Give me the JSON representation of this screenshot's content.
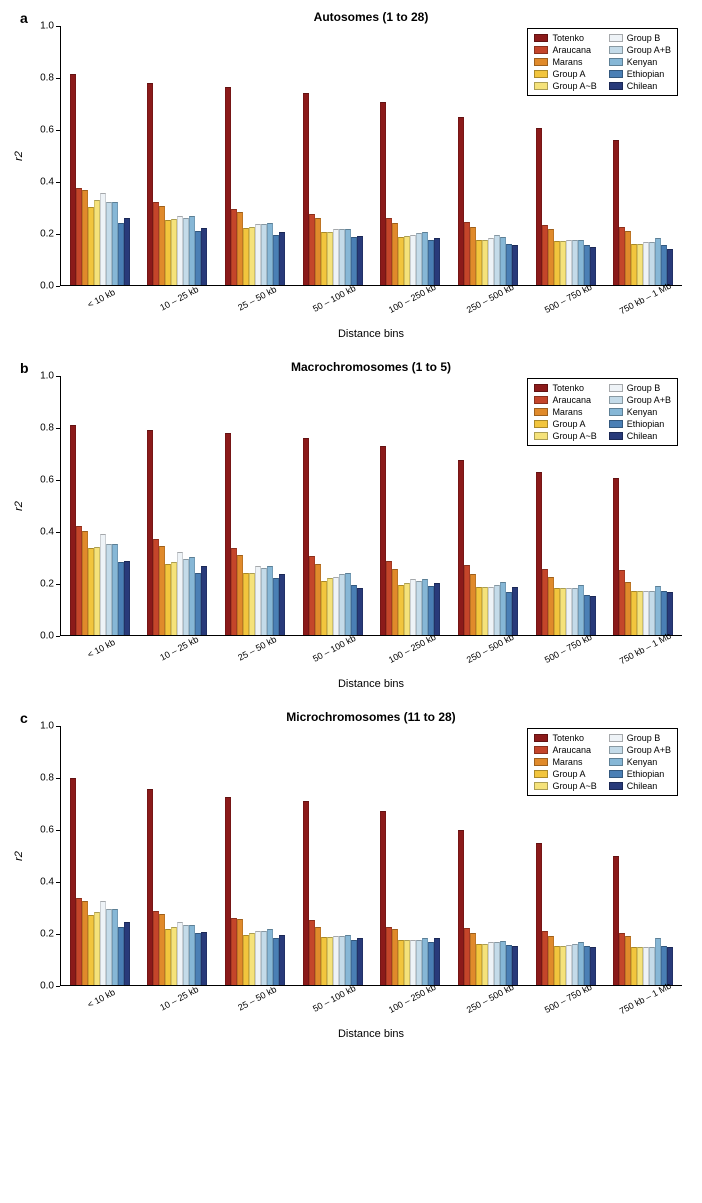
{
  "y_axis": {
    "label": "r2",
    "min": 0.0,
    "max": 1.0,
    "ticks": [
      0.0,
      0.2,
      0.4,
      0.6,
      0.8,
      1.0
    ]
  },
  "x_axis_label": "Distance bins",
  "categories": [
    "< 10 kb",
    "10 – 25 kb",
    "25 – 50 kb",
    "50 – 100 kb",
    "100 – 250 kb",
    "250 – 500 kb",
    "500 – 750 kb",
    "750 kb – 1 Mb"
  ],
  "series": [
    {
      "name": "Totenko",
      "color": "#8b1a1a"
    },
    {
      "name": "Araucana",
      "color": "#c4452a"
    },
    {
      "name": "Marans",
      "color": "#e08a2b"
    },
    {
      "name": "Group A",
      "color": "#f2c53d"
    },
    {
      "name": "Group A~B",
      "color": "#f5e27a"
    },
    {
      "name": "Group B",
      "color": "#eef3f7"
    },
    {
      "name": "Group A+B",
      "color": "#c4dbe9"
    },
    {
      "name": "Kenyan",
      "color": "#86b7d6"
    },
    {
      "name": "Ethiopian",
      "color": "#4a7fb5"
    },
    {
      "name": "Chilean",
      "color": "#283a7a"
    }
  ],
  "panels": [
    {
      "id": "a",
      "title": "Autosomes (1 to 28)",
      "data": [
        [
          0.815,
          0.375,
          0.365,
          0.3,
          0.33,
          0.355,
          0.32,
          0.32,
          0.24,
          0.26
        ],
        [
          0.78,
          0.32,
          0.305,
          0.25,
          0.255,
          0.265,
          0.26,
          0.265,
          0.21,
          0.22
        ],
        [
          0.765,
          0.295,
          0.28,
          0.22,
          0.225,
          0.235,
          0.235,
          0.24,
          0.195,
          0.205
        ],
        [
          0.74,
          0.275,
          0.26,
          0.205,
          0.205,
          0.215,
          0.215,
          0.215,
          0.185,
          0.19
        ],
        [
          0.705,
          0.26,
          0.24,
          0.185,
          0.19,
          0.195,
          0.2,
          0.205,
          0.175,
          0.18
        ],
        [
          0.65,
          0.245,
          0.225,
          0.175,
          0.175,
          0.18,
          0.195,
          0.185,
          0.16,
          0.155
        ],
        [
          0.605,
          0.23,
          0.215,
          0.17,
          0.17,
          0.175,
          0.175,
          0.175,
          0.155,
          0.145
        ],
        [
          0.56,
          0.225,
          0.21,
          0.16,
          0.16,
          0.165,
          0.165,
          0.18,
          0.155,
          0.14
        ]
      ]
    },
    {
      "id": "b",
      "title": "Macrochromosomes (1 to 5)",
      "data": [
        [
          0.81,
          0.42,
          0.4,
          0.335,
          0.34,
          0.39,
          0.35,
          0.35,
          0.28,
          0.285
        ],
        [
          0.79,
          0.37,
          0.345,
          0.275,
          0.28,
          0.32,
          0.295,
          0.3,
          0.24,
          0.265
        ],
        [
          0.78,
          0.335,
          0.31,
          0.24,
          0.24,
          0.265,
          0.26,
          0.265,
          0.22,
          0.235
        ],
        [
          0.76,
          0.305,
          0.275,
          0.21,
          0.22,
          0.225,
          0.235,
          0.24,
          0.195,
          0.18
        ],
        [
          0.73,
          0.285,
          0.255,
          0.195,
          0.2,
          0.215,
          0.21,
          0.215,
          0.19,
          0.2
        ],
        [
          0.675,
          0.27,
          0.235,
          0.185,
          0.185,
          0.185,
          0.195,
          0.205,
          0.165,
          0.185
        ],
        [
          0.63,
          0.255,
          0.225,
          0.18,
          0.18,
          0.18,
          0.18,
          0.195,
          0.155,
          0.15
        ],
        [
          0.605,
          0.25,
          0.205,
          0.17,
          0.17,
          0.17,
          0.17,
          0.19,
          0.17,
          0.165
        ]
      ]
    },
    {
      "id": "c",
      "title": "Microchromosomes (11 to 28)",
      "data": [
        [
          0.8,
          0.335,
          0.325,
          0.27,
          0.28,
          0.325,
          0.295,
          0.295,
          0.225,
          0.245
        ],
        [
          0.755,
          0.285,
          0.275,
          0.215,
          0.225,
          0.245,
          0.23,
          0.23,
          0.2,
          0.205
        ],
        [
          0.725,
          0.26,
          0.255,
          0.195,
          0.2,
          0.21,
          0.21,
          0.215,
          0.18,
          0.195
        ],
        [
          0.71,
          0.25,
          0.225,
          0.185,
          0.185,
          0.19,
          0.19,
          0.195,
          0.175,
          0.18
        ],
        [
          0.67,
          0.225,
          0.215,
          0.175,
          0.175,
          0.175,
          0.175,
          0.18,
          0.165,
          0.18
        ],
        [
          0.6,
          0.22,
          0.2,
          0.16,
          0.16,
          0.165,
          0.165,
          0.17,
          0.155,
          0.15
        ],
        [
          0.55,
          0.21,
          0.19,
          0.15,
          0.15,
          0.155,
          0.16,
          0.165,
          0.15,
          0.145
        ],
        [
          0.5,
          0.2,
          0.19,
          0.145,
          0.145,
          0.145,
          0.145,
          0.18,
          0.15,
          0.145
        ]
      ]
    }
  ],
  "typography": {
    "title_fontsize": 12,
    "axis_label_fontsize": 11,
    "tick_fontsize": 10,
    "legend_fontsize": 9
  },
  "background_color": "#ffffff"
}
